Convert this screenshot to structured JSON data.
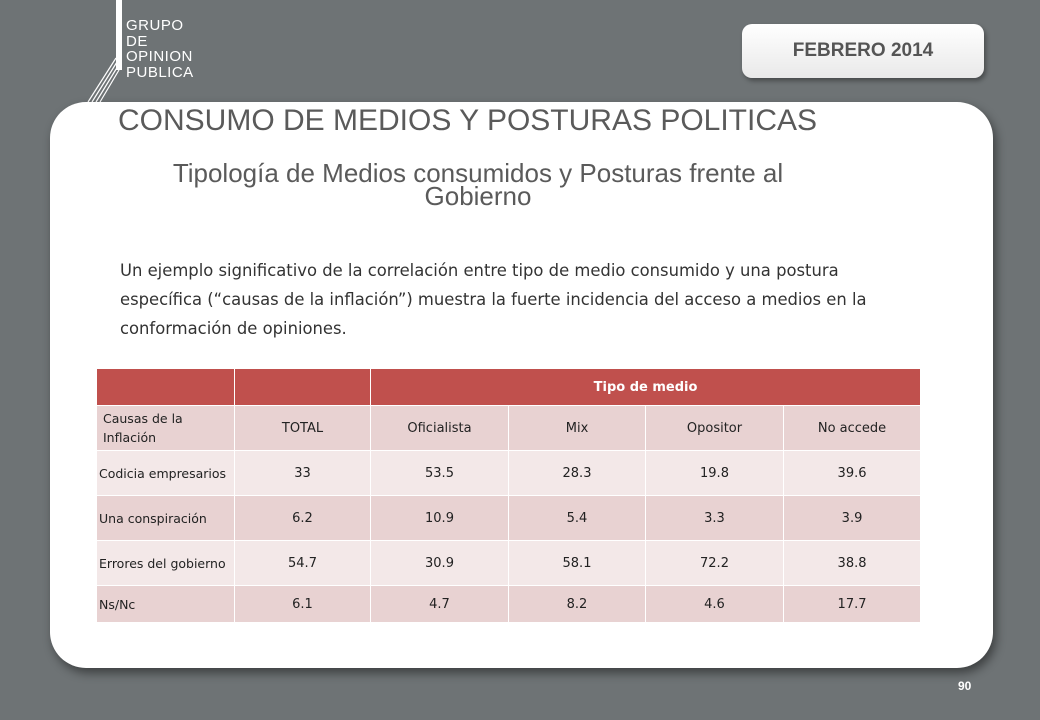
{
  "logo": {
    "lines": [
      "GRUPO",
      "DE",
      "OPINION",
      "PUBLICA"
    ]
  },
  "date_badge": "FEBRERO 2014",
  "title": "CONSUMO DE MEDIOS  Y POSTURAS POLITICAS",
  "subtitle": "Tipología de Medios consumidos y Posturas frente al Gobierno",
  "paragraph": "Un ejemplo significativo de la correlación entre tipo de medio consumido y una postura específica (“causas de la inflación”) muestra la fuerte incidencia del acceso a medios en la conformación de opiniones.",
  "table": {
    "group_header": "Tipo de medio",
    "columns": [
      "Causas de la Inflación",
      "TOTAL",
      "Oficialista",
      "Mix",
      "Opositor",
      "No accede"
    ],
    "rows": [
      [
        "Codicia empresarios",
        "33",
        "53.5",
        "28.3",
        "19.8",
        "39.6"
      ],
      [
        "Una conspiración",
        "6.2",
        "10.9",
        "5.4",
        "3.3",
        "3.9"
      ],
      [
        "Errores del gobierno",
        "54.7",
        "30.9",
        "58.1",
        "72.2",
        "38.8"
      ],
      [
        "Ns/Nc",
        "6.1",
        "4.7",
        "8.2",
        "4.6",
        "17.7"
      ]
    ]
  },
  "page_number": "90",
  "colors": {
    "header_red": "#c0504d",
    "row_pink": "#e8d2d2",
    "row_light": "#f3e8e8",
    "background": "#6e7375"
  }
}
